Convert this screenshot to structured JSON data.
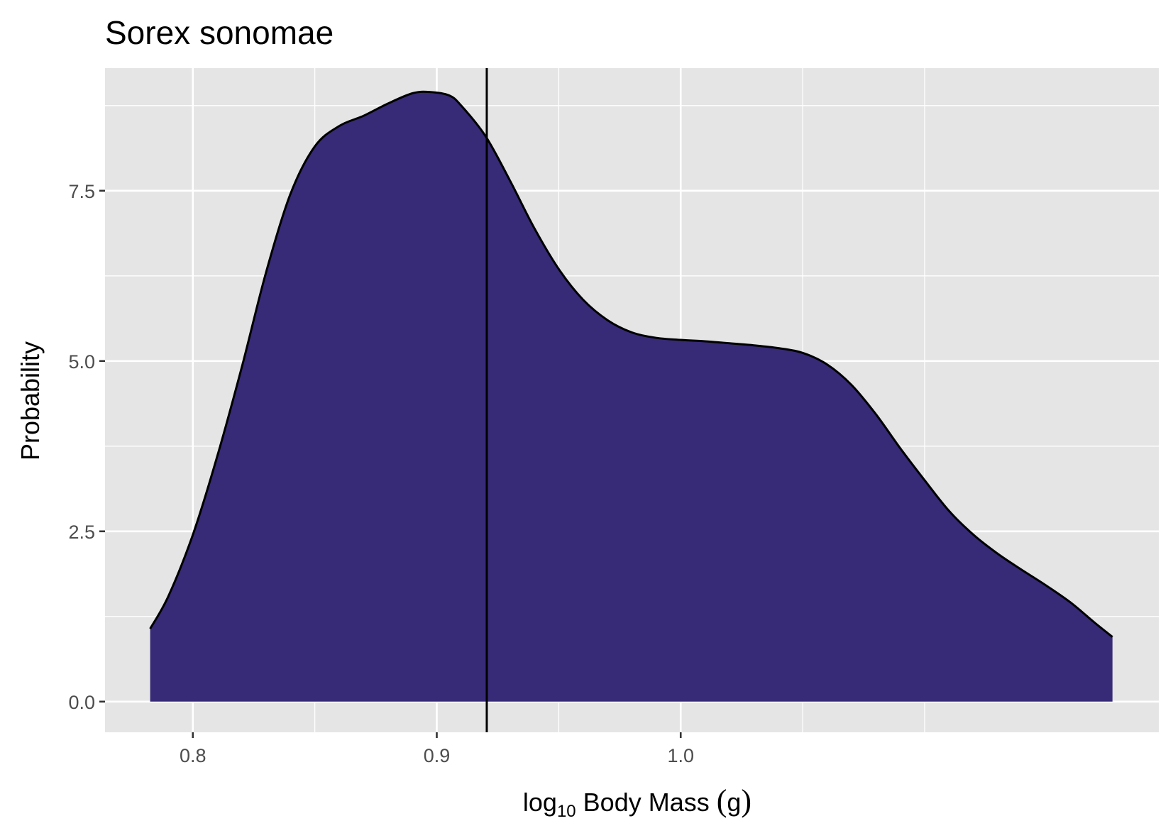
{
  "chart_data": {
    "type": "area",
    "title": "Sorex sonomae",
    "xlabel": {
      "base": "log",
      "subscript": "10",
      "rest": " Body Mass ",
      "paren_open": "(",
      "unit": "g",
      "paren_close": ")"
    },
    "ylabel": "Probability",
    "xlim": [
      0.764,
      1.196
    ],
    "ylim": [
      -0.45,
      9.3
    ],
    "x_ticks": [
      0.8,
      0.9,
      1.0
    ],
    "x_tick_labels": [
      "0.8",
      "0.9",
      "1.0"
    ],
    "x_minor": [
      0.85,
      0.95,
      1.05,
      1.1
    ],
    "y_ticks": [
      0,
      2.5,
      5.0,
      7.5
    ],
    "y_tick_labels": [
      "0.0",
      "2.5",
      "5.0",
      "7.5"
    ],
    "y_minor": [
      1.25,
      3.75,
      6.25,
      8.75
    ],
    "grid": true,
    "legend": "none",
    "fill_color": "#372A77",
    "line_color": "#000000",
    "panel_color": "#E5E5E5",
    "reference_line_x": 0.9205,
    "x": [
      0.7825,
      0.79,
      0.8,
      0.81,
      0.82,
      0.83,
      0.84,
      0.85,
      0.86,
      0.87,
      0.88,
      0.89,
      0.897,
      0.905,
      0.91,
      0.92,
      0.93,
      0.94,
      0.95,
      0.96,
      0.97,
      0.98,
      0.99,
      1.0,
      1.01,
      1.02,
      1.03,
      1.04,
      1.05,
      1.06,
      1.07,
      1.08,
      1.09,
      1.1,
      1.11,
      1.12,
      1.13,
      1.14,
      1.15,
      1.16,
      1.17,
      1.177
    ],
    "y": [
      1.07,
      1.55,
      2.45,
      3.6,
      4.9,
      6.3,
      7.45,
      8.15,
      8.45,
      8.6,
      8.78,
      8.93,
      8.95,
      8.9,
      8.75,
      8.3,
      7.65,
      6.95,
      6.35,
      5.9,
      5.6,
      5.42,
      5.34,
      5.31,
      5.29,
      5.26,
      5.23,
      5.19,
      5.12,
      4.95,
      4.65,
      4.22,
      3.72,
      3.25,
      2.8,
      2.45,
      2.17,
      1.93,
      1.7,
      1.45,
      1.15,
      0.95
    ]
  }
}
